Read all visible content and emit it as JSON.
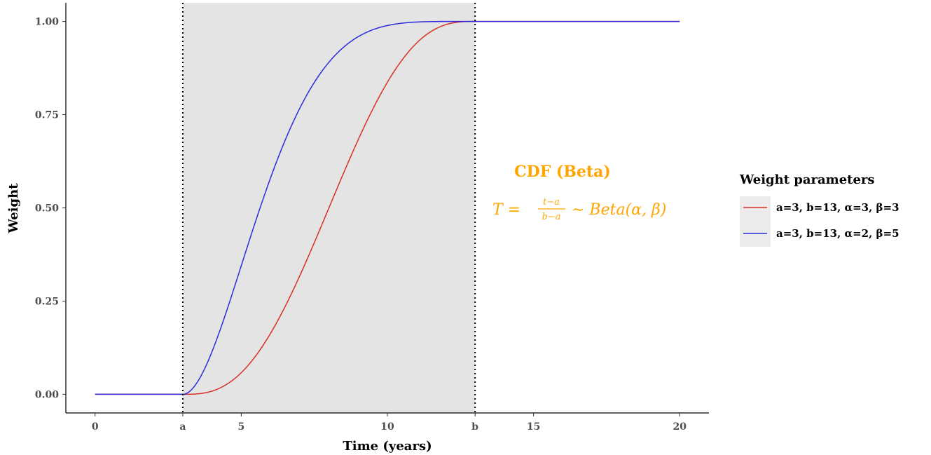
{
  "chart_data": {
    "type": "line",
    "xlabel": "Time (years)",
    "ylabel": "Weight",
    "xlim": [
      -1,
      21
    ],
    "ylim": [
      -0.05,
      1.05
    ],
    "x_ticks": [
      {
        "value": 0,
        "label": "0"
      },
      {
        "value": 3,
        "label": "a"
      },
      {
        "value": 5,
        "label": "5"
      },
      {
        "value": 10,
        "label": "10"
      },
      {
        "value": 13,
        "label": "b"
      },
      {
        "value": 15,
        "label": "15"
      },
      {
        "value": 20,
        "label": "20"
      }
    ],
    "y_ticks": [
      {
        "value": 0.0,
        "label": "0.00"
      },
      {
        "value": 0.25,
        "label": "0.25"
      },
      {
        "value": 0.5,
        "label": "0.50"
      },
      {
        "value": 0.75,
        "label": "0.75"
      },
      {
        "value": 1.0,
        "label": "1.00"
      }
    ],
    "grid": false,
    "shaded_region": {
      "x_start": 3,
      "x_end": 13,
      "color": "#e4e4e4"
    },
    "vlines": [
      {
        "x": 3,
        "style": "dotted",
        "color": "#000000"
      },
      {
        "x": 13,
        "style": "dotted",
        "color": "#000000"
      }
    ],
    "annotation": {
      "title": "CDF (Beta)",
      "formula_left": "T =",
      "formula_num": "t−a",
      "formula_den": "b−a",
      "formula_right": "∼ Beta(α, β)",
      "color": "#FFA500"
    },
    "legend": {
      "title": "Weight parameters",
      "position": "right",
      "background": "#ebebeb"
    },
    "series": [
      {
        "name": "a=3, b=13, α=3, β=3",
        "color": "#d73027",
        "a": 3,
        "b": 13,
        "alpha": 3,
        "beta": 3,
        "x": [
          0,
          1,
          2,
          3,
          3.5,
          4,
          4.5,
          5,
          5.5,
          6,
          6.5,
          7,
          7.5,
          8,
          8.5,
          9,
          9.5,
          10,
          10.5,
          11,
          11.5,
          12,
          12.5,
          13,
          14,
          15,
          16,
          17,
          18,
          19,
          20
        ],
        "y": [
          0,
          0,
          0,
          0,
          0.0059,
          0.0086,
          0.0579,
          0.104,
          0.1631,
          0.216,
          0.3174,
          0.352,
          0.4421,
          0.5,
          0.5579,
          0.648,
          0.6826,
          0.784,
          0.8369,
          0.896,
          0.9421,
          0.9914,
          0.9941,
          1,
          1,
          1,
          1,
          1,
          1,
          1,
          1
        ]
      },
      {
        "name": "a=3, b=13, α=2, β=5",
        "color": "#2b2bdc",
        "a": 3,
        "b": 13,
        "alpha": 2,
        "beta": 5,
        "x": [
          0,
          1,
          2,
          3,
          3.5,
          4,
          4.5,
          5,
          5.5,
          6,
          6.5,
          7,
          7.5,
          8,
          8.5,
          9,
          9.5,
          10,
          10.5,
          11,
          11.5,
          12,
          12.5,
          13,
          14,
          15,
          16,
          17,
          18,
          19,
          20
        ],
        "y": [
          0,
          0,
          0,
          0,
          0.0328,
          0.1143,
          0.2235,
          0.3446,
          0.4661,
          0.5798,
          0.6809,
          0.7667,
          0.8364,
          0.8906,
          0.9308,
          0.959,
          0.9777,
          0.9891,
          0.9953,
          0.9984,
          0.9996,
          0.99994,
          1,
          1,
          1,
          1,
          1,
          1,
          1,
          1,
          1
        ]
      }
    ]
  }
}
